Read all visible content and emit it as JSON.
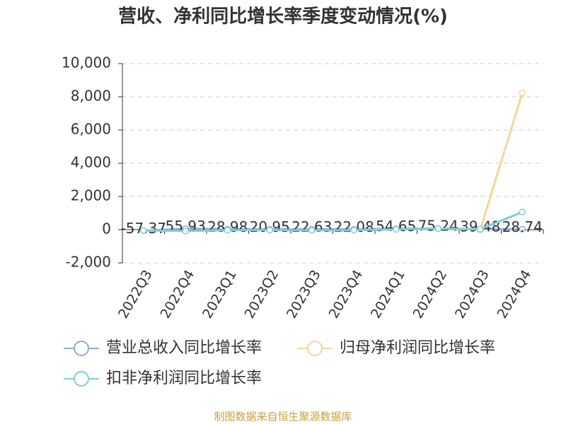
{
  "chart_data": {
    "type": "line",
    "title": "营收、净利同比增长率季度变动情况(%)",
    "categories": [
      "2022Q3",
      "2022Q4",
      "2023Q1",
      "2023Q2",
      "2023Q3",
      "2023Q4",
      "2024Q1",
      "2024Q2",
      "2024Q3",
      "2024Q4"
    ],
    "series": [
      {
        "name": "营业总收入同比增长率",
        "color": "#8eaadb",
        "values": [
          -57.37,
          55.93,
          28.98,
          20.95,
          22.63,
          22.08,
          54.65,
          75.24,
          39.48,
          28.74
        ],
        "show_labels": true
      },
      {
        "name": "归母净利润同比增长率",
        "color": "#f8d49b",
        "values": [
          null,
          null,
          null,
          null,
          null,
          null,
          null,
          null,
          -20,
          8230
        ]
      },
      {
        "name": "扣非净利润同比增长率",
        "color": "#7ecfd6",
        "values": [
          -50,
          -80,
          -30,
          -20,
          -40,
          -30,
          20,
          60,
          30,
          1060
        ]
      }
    ],
    "ylim": [
      -2000,
      10000
    ],
    "yticks": [
      {
        "value": -2000,
        "label": "-2,000"
      },
      0,
      {
        "value": 2000,
        "label": "2,000"
      },
      {
        "value": 4000,
        "label": "4,000"
      },
      {
        "value": 6000,
        "label": "6,000"
      },
      {
        "value": 8000,
        "label": "8,000"
      },
      {
        "value": 10000,
        "label": "10,000"
      }
    ],
    "grid": true,
    "source": "制图数据来自恒生聚源数据库"
  }
}
